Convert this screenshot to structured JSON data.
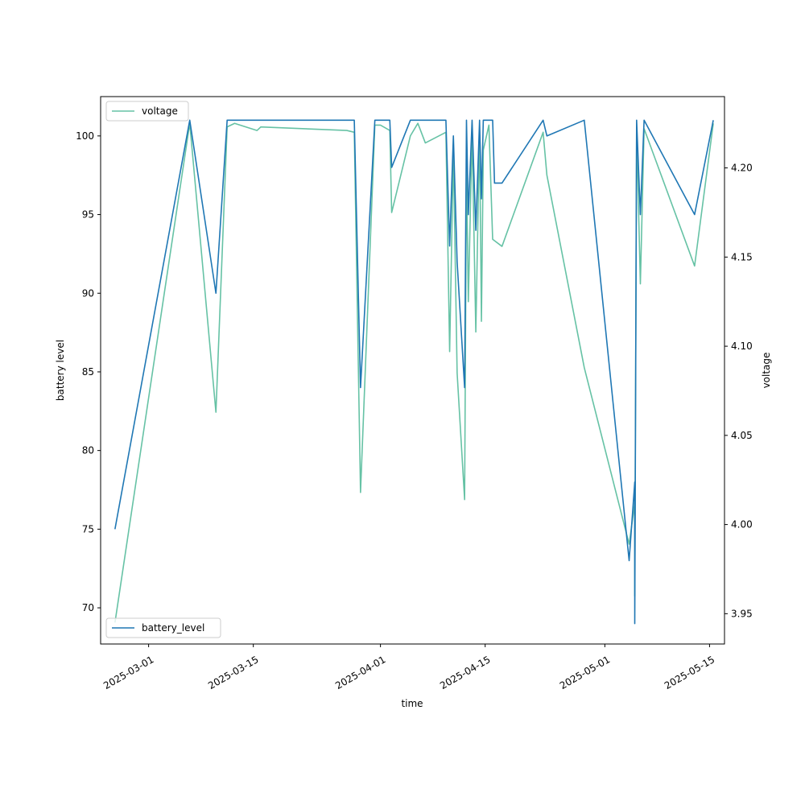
{
  "chart_data": {
    "type": "line",
    "xlabel": "time",
    "ylabel_left": "battery level",
    "ylabel_right": "voltage",
    "x_ticks": [
      "2025-03-01",
      "2025-03-15",
      "2025-04-01",
      "2025-04-15",
      "2025-05-01",
      "2025-05-15"
    ],
    "y_left_ticks": [
      70,
      75,
      80,
      85,
      90,
      95,
      100
    ],
    "y_right_ticks": [
      3.95,
      4.0,
      4.05,
      4.1,
      4.15,
      4.2
    ],
    "x_range": [
      "2025-02-22T14:00",
      "2025-05-17T00:00"
    ],
    "y_left_range": [
      67.7,
      102.5
    ],
    "y_right_range": [
      3.933,
      4.24
    ],
    "legend_left_axis": "lower left",
    "legend_right_axis": "upper left",
    "series": [
      {
        "name": "battery_level",
        "axis": "left",
        "color": "#1f77b4",
        "points": [
          [
            "2025-02-24T12:00",
            75
          ],
          [
            "2025-03-06T12:00",
            101
          ],
          [
            "2025-03-10T00:00",
            90
          ],
          [
            "2025-03-11T12:00",
            101
          ],
          [
            "2025-03-28T12:00",
            101
          ],
          [
            "2025-03-29T08:00",
            84
          ],
          [
            "2025-03-31T06:00",
            101
          ],
          [
            "2025-04-02T06:00",
            101
          ],
          [
            "2025-04-02T12:00",
            98
          ],
          [
            "2025-04-05T00:00",
            101
          ],
          [
            "2025-04-09T18:00",
            101
          ],
          [
            "2025-04-10T06:00",
            93
          ],
          [
            "2025-04-10T18:00",
            100
          ],
          [
            "2025-04-11T06:00",
            92
          ],
          [
            "2025-04-12T06:00",
            84
          ],
          [
            "2025-04-12T12:00",
            101
          ],
          [
            "2025-04-12T18:00",
            95
          ],
          [
            "2025-04-13T06:00",
            101
          ],
          [
            "2025-04-13T18:00",
            94
          ],
          [
            "2025-04-14T06:00",
            101
          ],
          [
            "2025-04-14T12:00",
            96
          ],
          [
            "2025-04-14T18:00",
            101
          ],
          [
            "2025-04-16T00:00",
            101
          ],
          [
            "2025-04-16T06:00",
            97
          ],
          [
            "2025-04-17T06:00",
            97
          ],
          [
            "2025-04-22T18:00",
            101
          ],
          [
            "2025-04-23T06:00",
            100
          ],
          [
            "2025-04-28T06:00",
            101
          ],
          [
            "2025-05-04T06:00",
            73
          ],
          [
            "2025-05-05T00:00",
            78
          ],
          [
            "2025-05-05T00:00",
            69
          ],
          [
            "2025-05-05T06:00",
            101
          ],
          [
            "2025-05-05T18:00",
            95
          ],
          [
            "2025-05-06T06:00",
            101
          ],
          [
            "2025-05-13T00:00",
            95
          ],
          [
            "2025-05-15T12:00",
            101
          ]
        ]
      },
      {
        "name": "voltage",
        "axis": "right",
        "color": "#66c2a5",
        "points": [
          [
            "2025-02-24T12:00",
            3.945
          ],
          [
            "2025-03-06T12:00",
            4.225
          ],
          [
            "2025-03-10T00:00",
            4.063
          ],
          [
            "2025-03-11T12:00",
            4.223
          ],
          [
            "2025-03-12T12:00",
            4.225
          ],
          [
            "2025-03-15T12:00",
            4.221
          ],
          [
            "2025-03-16T00:00",
            4.223
          ],
          [
            "2025-03-27T12:00",
            4.221
          ],
          [
            "2025-03-28T12:00",
            4.22
          ],
          [
            "2025-03-29T08:00",
            4.018
          ],
          [
            "2025-03-31T06:00",
            4.224
          ],
          [
            "2025-04-01T00:00",
            4.224
          ],
          [
            "2025-04-02T06:00",
            4.221
          ],
          [
            "2025-04-02T12:00",
            4.175
          ],
          [
            "2025-04-05T00:00",
            4.218
          ],
          [
            "2025-04-06T00:00",
            4.225
          ],
          [
            "2025-04-07T00:00",
            4.214
          ],
          [
            "2025-04-09T18:00",
            4.22
          ],
          [
            "2025-04-10T06:00",
            4.097
          ],
          [
            "2025-04-10T18:00",
            4.21
          ],
          [
            "2025-04-11T06:00",
            4.085
          ],
          [
            "2025-04-12T06:00",
            4.014
          ],
          [
            "2025-04-12T12:00",
            4.2
          ],
          [
            "2025-04-12T18:00",
            4.125
          ],
          [
            "2025-04-13T06:00",
            4.22
          ],
          [
            "2025-04-13T18:00",
            4.108
          ],
          [
            "2025-04-14T06:00",
            4.22
          ],
          [
            "2025-04-14T12:00",
            4.114
          ],
          [
            "2025-04-14T18:00",
            4.21
          ],
          [
            "2025-04-15T12:00",
            4.224
          ],
          [
            "2025-04-16T00:00",
            4.16
          ],
          [
            "2025-04-17T06:00",
            4.156
          ],
          [
            "2025-04-22T18:00",
            4.22
          ],
          [
            "2025-04-23T06:00",
            4.196
          ],
          [
            "2025-04-28T06:00",
            4.088
          ],
          [
            "2025-05-04T06:00",
            3.989
          ],
          [
            "2025-05-05T00:00",
            4.012
          ],
          [
            "2025-05-05T00:00",
            3.96
          ],
          [
            "2025-05-05T06:00",
            4.223
          ],
          [
            "2025-05-05T18:00",
            4.135
          ],
          [
            "2025-05-06T06:00",
            4.222
          ],
          [
            "2025-05-13T00:00",
            4.145
          ],
          [
            "2025-05-15T12:00",
            4.225
          ]
        ]
      }
    ]
  }
}
